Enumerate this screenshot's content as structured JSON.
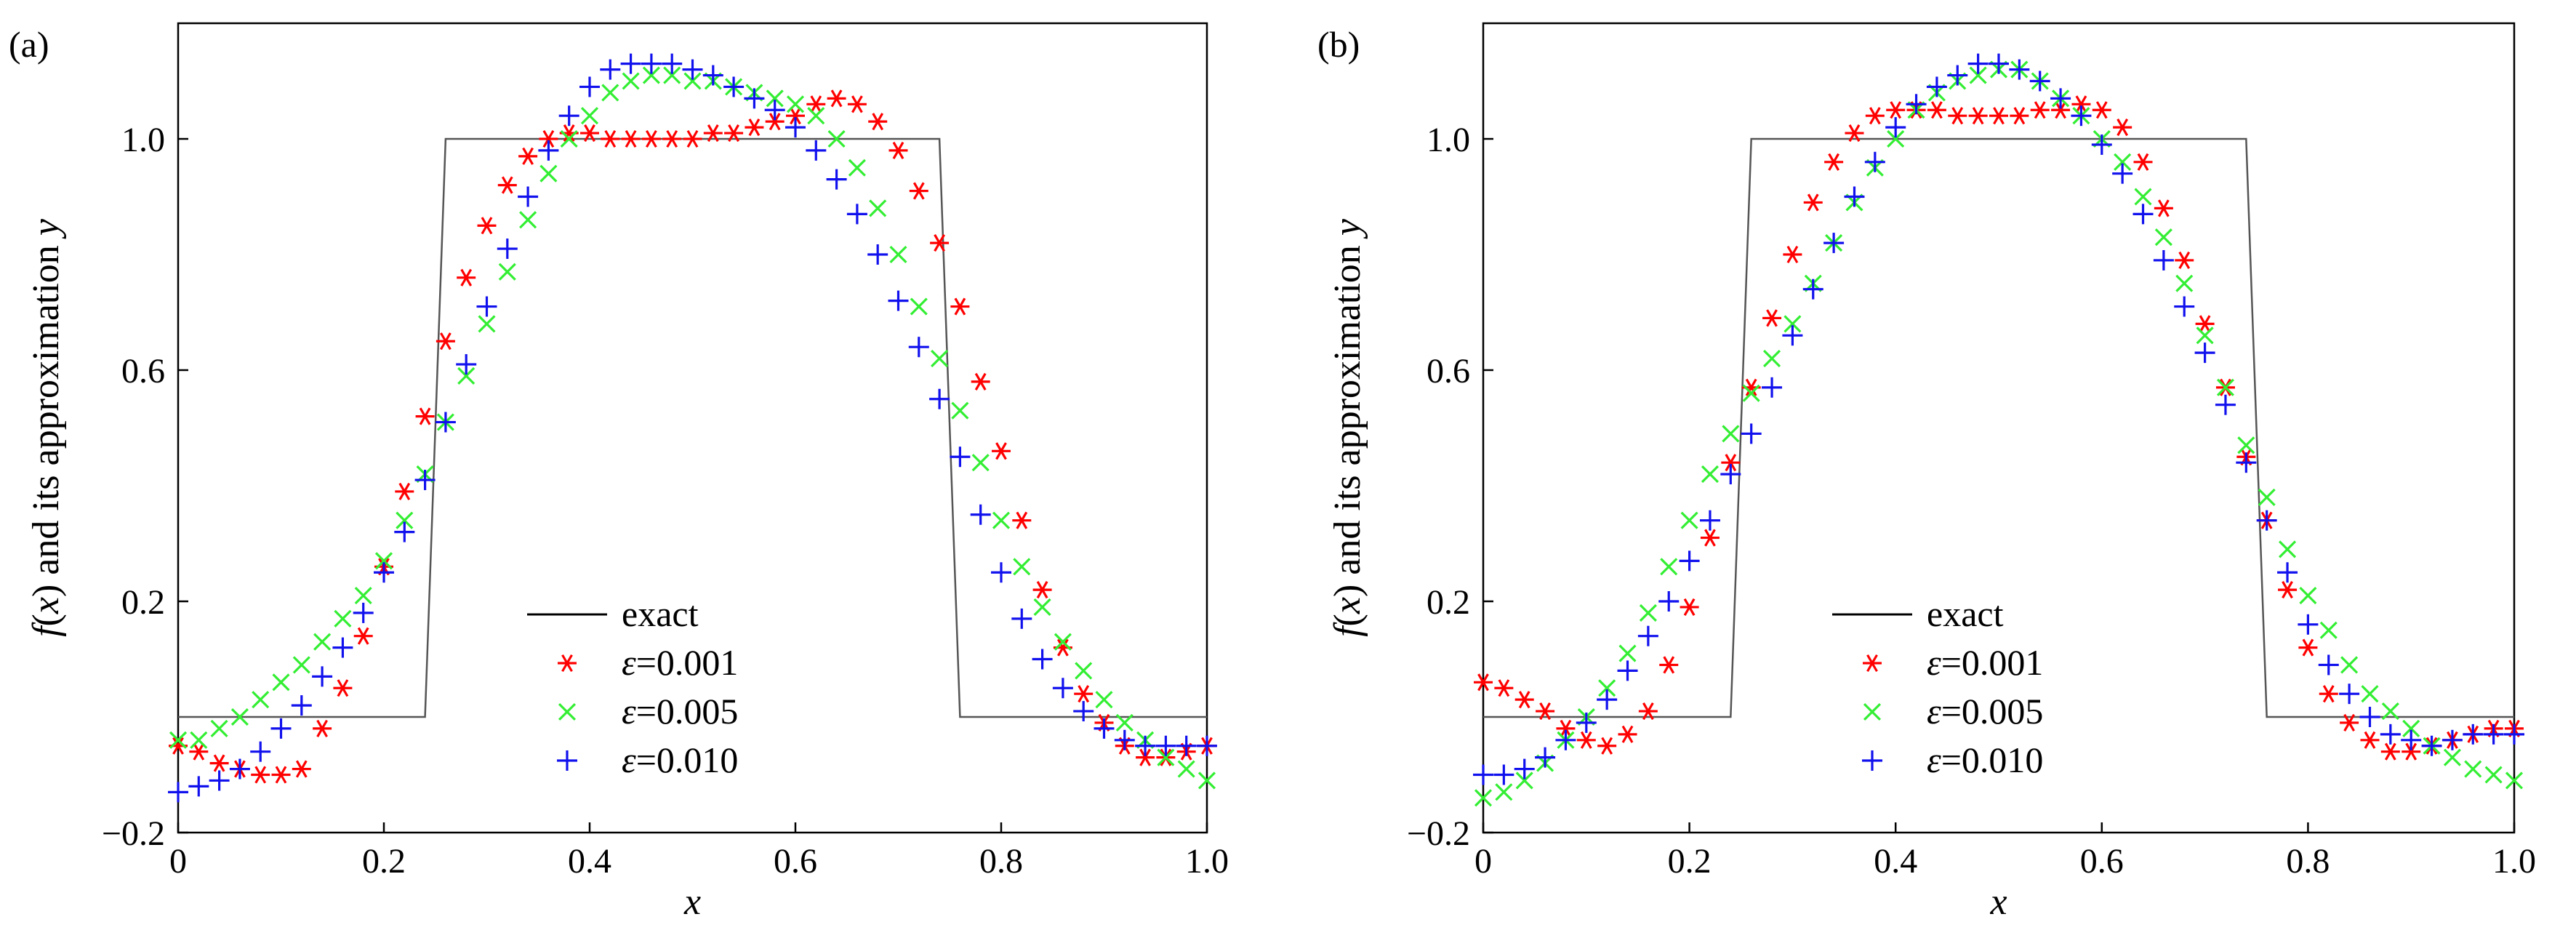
{
  "chart_data": [
    {
      "panel_label": "(a)",
      "type": "scatter",
      "xlabel": "x",
      "ylabel_parts": [
        "f",
        "(",
        "x",
        ")",
        " and its approximation ",
        "y"
      ],
      "xlim": [
        0,
        1.0
      ],
      "ylim": [
        -0.2,
        1.2
      ],
      "xticks": [
        0,
        0.2,
        0.4,
        0.6,
        0.8,
        1.0
      ],
      "xtick_labels": [
        "0",
        "0.2",
        "0.4",
        "0.6",
        "0.8",
        "1.0"
      ],
      "yticks": [
        -0.2,
        0.2,
        0.6,
        1.0
      ],
      "ytick_labels": [
        "−0.2",
        "0.2",
        "0.6",
        "1.0"
      ],
      "grid": false,
      "legend_placement": "lower-center",
      "exact": {
        "name": "exact",
        "x": [
          0,
          0.24,
          0.26,
          0.74,
          0.76,
          1.0
        ],
        "y": [
          0,
          0,
          1,
          1,
          0,
          0
        ]
      },
      "series": [
        {
          "name_symbol": "ε",
          "name_value": "=0.001",
          "color": "#ff0000",
          "marker": "asterisk",
          "x": [
            0,
            0.02,
            0.04,
            0.06,
            0.08,
            0.1,
            0.12,
            0.14,
            0.16,
            0.18,
            0.2,
            0.22,
            0.24,
            0.26,
            0.28,
            0.3,
            0.32,
            0.34,
            0.36,
            0.38,
            0.4,
            0.42,
            0.44,
            0.46,
            0.48,
            0.5,
            0.52,
            0.54,
            0.56,
            0.58,
            0.6,
            0.62,
            0.64,
            0.66,
            0.68,
            0.7,
            0.72,
            0.74,
            0.76,
            0.78,
            0.8,
            0.82,
            0.84,
            0.86,
            0.88,
            0.9,
            0.92,
            0.94,
            0.96,
            0.98,
            1.0
          ],
          "y": [
            -0.05,
            -0.06,
            -0.08,
            -0.09,
            -0.1,
            -0.1,
            -0.09,
            -0.02,
            0.05,
            0.14,
            0.26,
            0.39,
            0.52,
            0.65,
            0.76,
            0.85,
            0.92,
            0.97,
            1.0,
            1.01,
            1.01,
            1.0,
            1.0,
            1.0,
            1.0,
            1.0,
            1.01,
            1.01,
            1.02,
            1.03,
            1.04,
            1.06,
            1.07,
            1.06,
            1.03,
            0.98,
            0.91,
            0.82,
            0.71,
            0.58,
            0.46,
            0.34,
            0.22,
            0.12,
            0.04,
            -0.01,
            -0.05,
            -0.07,
            -0.07,
            -0.06,
            -0.05
          ]
        },
        {
          "name_symbol": "ε",
          "name_value": "=0.005",
          "color": "#33ee33",
          "marker": "x",
          "x": [
            0,
            0.02,
            0.04,
            0.06,
            0.08,
            0.1,
            0.12,
            0.14,
            0.16,
            0.18,
            0.2,
            0.22,
            0.24,
            0.26,
            0.28,
            0.3,
            0.32,
            0.34,
            0.36,
            0.38,
            0.4,
            0.42,
            0.44,
            0.46,
            0.48,
            0.5,
            0.52,
            0.54,
            0.56,
            0.58,
            0.6,
            0.62,
            0.64,
            0.66,
            0.68,
            0.7,
            0.72,
            0.74,
            0.76,
            0.78,
            0.8,
            0.82,
            0.84,
            0.86,
            0.88,
            0.9,
            0.92,
            0.94,
            0.96,
            0.98,
            1.0
          ],
          "y": [
            -0.04,
            -0.04,
            -0.02,
            0.0,
            0.03,
            0.06,
            0.09,
            0.13,
            0.17,
            0.21,
            0.27,
            0.34,
            0.42,
            0.51,
            0.59,
            0.68,
            0.77,
            0.86,
            0.94,
            1.0,
            1.04,
            1.08,
            1.1,
            1.11,
            1.11,
            1.1,
            1.1,
            1.09,
            1.08,
            1.07,
            1.06,
            1.04,
            1.0,
            0.95,
            0.88,
            0.8,
            0.71,
            0.62,
            0.53,
            0.44,
            0.34,
            0.26,
            0.19,
            0.13,
            0.08,
            0.03,
            -0.01,
            -0.04,
            -0.07,
            -0.09,
            -0.11
          ]
        },
        {
          "name_symbol": "ε",
          "name_value": "=0.010",
          "color": "#1111ee",
          "marker": "plus",
          "x": [
            0,
            0.02,
            0.04,
            0.06,
            0.08,
            0.1,
            0.12,
            0.14,
            0.16,
            0.18,
            0.2,
            0.22,
            0.24,
            0.26,
            0.28,
            0.3,
            0.32,
            0.34,
            0.36,
            0.38,
            0.4,
            0.42,
            0.44,
            0.46,
            0.48,
            0.5,
            0.52,
            0.54,
            0.56,
            0.58,
            0.6,
            0.62,
            0.64,
            0.66,
            0.68,
            0.7,
            0.72,
            0.74,
            0.76,
            0.78,
            0.8,
            0.82,
            0.84,
            0.86,
            0.88,
            0.9,
            0.92,
            0.94,
            0.96,
            0.98,
            1.0
          ],
          "y": [
            -0.13,
            -0.12,
            -0.11,
            -0.09,
            -0.06,
            -0.02,
            0.02,
            0.07,
            0.12,
            0.18,
            0.25,
            0.32,
            0.41,
            0.51,
            0.61,
            0.71,
            0.81,
            0.9,
            0.98,
            1.04,
            1.09,
            1.12,
            1.13,
            1.13,
            1.13,
            1.12,
            1.11,
            1.09,
            1.07,
            1.05,
            1.02,
            0.98,
            0.93,
            0.87,
            0.8,
            0.72,
            0.64,
            0.55,
            0.45,
            0.35,
            0.25,
            0.17,
            0.1,
            0.05,
            0.01,
            -0.02,
            -0.04,
            -0.05,
            -0.05,
            -0.05,
            -0.05
          ]
        }
      ]
    },
    {
      "panel_label": "(b)",
      "type": "scatter",
      "xlabel": "x",
      "ylabel_parts": [
        "f",
        "(",
        "x",
        ")",
        " and its approximation ",
        "y"
      ],
      "xlim": [
        0,
        1.0
      ],
      "ylim": [
        -0.2,
        1.2
      ],
      "xticks": [
        0,
        0.2,
        0.4,
        0.6,
        0.8,
        1.0
      ],
      "xtick_labels": [
        "0",
        "0.2",
        "0.4",
        "0.6",
        "0.8",
        "1.0"
      ],
      "yticks": [
        -0.2,
        0.2,
        0.6,
        1.0
      ],
      "ytick_labels": [
        "−0.2",
        "0.2",
        "0.6",
        "1.0"
      ],
      "grid": false,
      "legend_placement": "lower-center",
      "exact": {
        "name": "exact",
        "x": [
          0,
          0.24,
          0.26,
          0.74,
          0.76,
          1.0
        ],
        "y": [
          0,
          0,
          1,
          1,
          0,
          0
        ]
      },
      "series": [
        {
          "name_symbol": "ε",
          "name_value": "=0.001",
          "color": "#ff0000",
          "marker": "asterisk",
          "x": [
            0,
            0.02,
            0.04,
            0.06,
            0.08,
            0.1,
            0.12,
            0.14,
            0.16,
            0.18,
            0.2,
            0.22,
            0.24,
            0.26,
            0.28,
            0.3,
            0.32,
            0.34,
            0.36,
            0.38,
            0.4,
            0.42,
            0.44,
            0.46,
            0.48,
            0.5,
            0.52,
            0.54,
            0.56,
            0.58,
            0.6,
            0.62,
            0.64,
            0.66,
            0.68,
            0.7,
            0.72,
            0.74,
            0.76,
            0.78,
            0.8,
            0.82,
            0.84,
            0.86,
            0.88,
            0.9,
            0.92,
            0.94,
            0.96,
            0.98,
            1.0
          ],
          "y": [
            0.06,
            0.05,
            0.03,
            0.01,
            -0.02,
            -0.04,
            -0.05,
            -0.03,
            0.01,
            0.09,
            0.19,
            0.31,
            0.44,
            0.57,
            0.69,
            0.8,
            0.89,
            0.96,
            1.01,
            1.04,
            1.05,
            1.05,
            1.05,
            1.04,
            1.04,
            1.04,
            1.04,
            1.05,
            1.05,
            1.06,
            1.05,
            1.02,
            0.96,
            0.88,
            0.79,
            0.68,
            0.57,
            0.45,
            0.34,
            0.22,
            0.12,
            0.04,
            -0.01,
            -0.04,
            -0.06,
            -0.06,
            -0.05,
            -0.04,
            -0.03,
            -0.02,
            -0.02
          ]
        },
        {
          "name_symbol": "ε",
          "name_value": "=0.005",
          "color": "#33ee33",
          "marker": "x",
          "x": [
            0,
            0.02,
            0.04,
            0.06,
            0.08,
            0.1,
            0.12,
            0.14,
            0.16,
            0.18,
            0.2,
            0.22,
            0.24,
            0.26,
            0.28,
            0.3,
            0.32,
            0.34,
            0.36,
            0.38,
            0.4,
            0.42,
            0.44,
            0.46,
            0.48,
            0.5,
            0.52,
            0.54,
            0.56,
            0.58,
            0.6,
            0.62,
            0.64,
            0.66,
            0.68,
            0.7,
            0.72,
            0.74,
            0.76,
            0.78,
            0.8,
            0.82,
            0.84,
            0.86,
            0.88,
            0.9,
            0.92,
            0.94,
            0.96,
            0.98,
            1.0
          ],
          "y": [
            -0.14,
            -0.13,
            -0.11,
            -0.08,
            -0.04,
            0.0,
            0.05,
            0.11,
            0.18,
            0.26,
            0.34,
            0.42,
            0.49,
            0.56,
            0.62,
            0.68,
            0.75,
            0.82,
            0.89,
            0.95,
            1.0,
            1.05,
            1.08,
            1.1,
            1.11,
            1.12,
            1.12,
            1.1,
            1.07,
            1.04,
            1.0,
            0.96,
            0.9,
            0.83,
            0.75,
            0.66,
            0.57,
            0.47,
            0.38,
            0.29,
            0.21,
            0.15,
            0.09,
            0.04,
            0.01,
            -0.02,
            -0.05,
            -0.07,
            -0.09,
            -0.1,
            -0.11
          ]
        },
        {
          "name_symbol": "ε",
          "name_value": "=0.010",
          "color": "#1111ee",
          "marker": "plus",
          "x": [
            0,
            0.02,
            0.04,
            0.06,
            0.08,
            0.1,
            0.12,
            0.14,
            0.16,
            0.18,
            0.2,
            0.22,
            0.24,
            0.26,
            0.28,
            0.3,
            0.32,
            0.34,
            0.36,
            0.38,
            0.4,
            0.42,
            0.44,
            0.46,
            0.48,
            0.5,
            0.52,
            0.54,
            0.56,
            0.58,
            0.6,
            0.62,
            0.64,
            0.66,
            0.68,
            0.7,
            0.72,
            0.74,
            0.76,
            0.78,
            0.8,
            0.82,
            0.84,
            0.86,
            0.88,
            0.9,
            0.92,
            0.94,
            0.96,
            0.98,
            1.0
          ],
          "y": [
            -0.1,
            -0.1,
            -0.09,
            -0.07,
            -0.04,
            -0.01,
            0.03,
            0.08,
            0.14,
            0.2,
            0.27,
            0.34,
            0.42,
            0.49,
            0.57,
            0.66,
            0.74,
            0.82,
            0.9,
            0.96,
            1.02,
            1.06,
            1.09,
            1.11,
            1.13,
            1.13,
            1.12,
            1.1,
            1.07,
            1.04,
            0.99,
            0.94,
            0.87,
            0.79,
            0.71,
            0.63,
            0.54,
            0.44,
            0.34,
            0.25,
            0.16,
            0.09,
            0.04,
            0.0,
            -0.03,
            -0.04,
            -0.05,
            -0.04,
            -0.03,
            -0.03,
            -0.03
          ]
        }
      ]
    }
  ]
}
